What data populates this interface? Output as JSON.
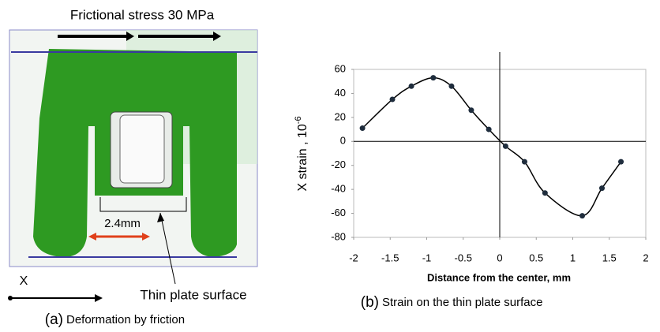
{
  "panel_a": {
    "force_label": "Frictional stress 30 MPa",
    "width_label": "2.4mm",
    "axis_label": "X",
    "surface_label": "Thin plate surface",
    "caption_letter": "(a)",
    "caption": "Deformation by friction"
  },
  "chart_data": {
    "type": "line",
    "xlabel": "Distance from the center, mm",
    "ylabel": "X strain , 10",
    "ylabel_sup": "-6",
    "caption_letter": "(b)",
    "caption": "Strain on the thin plate surface",
    "series": [
      {
        "color": "#000000",
        "x": [
          -1.88,
          -1.47,
          -1.21,
          -0.91,
          -0.66,
          -0.39,
          -0.15,
          0.08,
          0.34,
          0.62,
          1.13,
          1.4,
          1.66
        ],
        "values": [
          11,
          35,
          46,
          53,
          46,
          26,
          10,
          -4,
          -17,
          -43,
          -62,
          -39,
          -17
        ]
      }
    ],
    "xlim": [
      -2,
      2
    ],
    "xticks": [
      -2,
      -1.5,
      -1,
      -0.5,
      0,
      0.5,
      1,
      1.5,
      2
    ],
    "ylim": [
      -80,
      60
    ],
    "yticks": [
      -80,
      -60,
      -40,
      -20,
      0,
      20,
      40,
      60
    ]
  }
}
